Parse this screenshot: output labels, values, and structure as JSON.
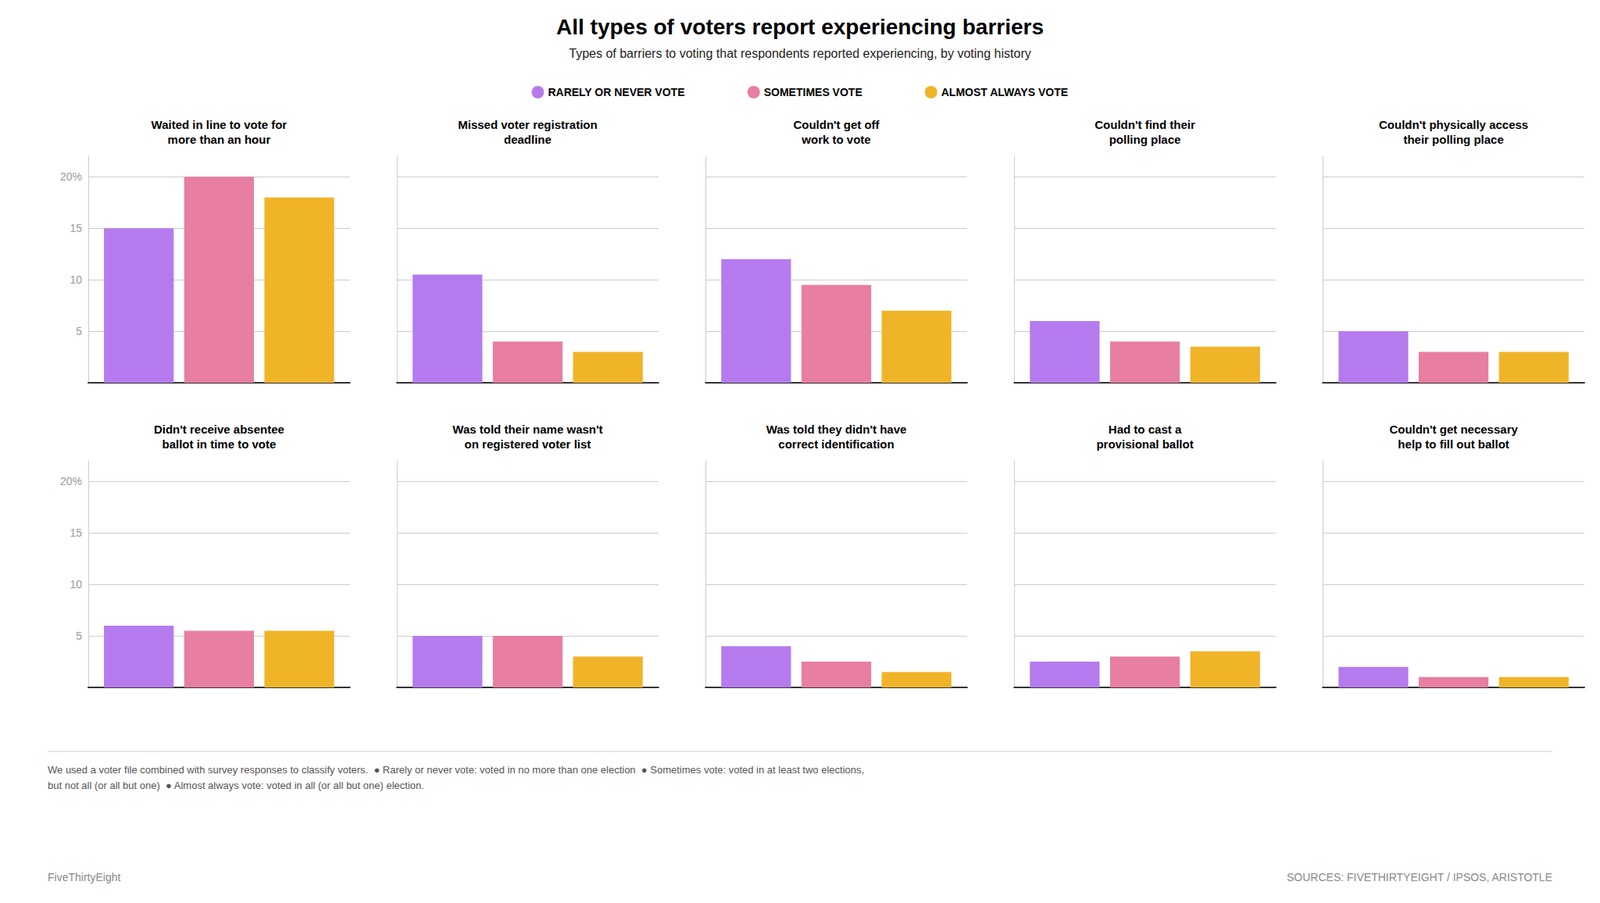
{
  "title": "All types of voters report experiencing barriers",
  "subtitle": "Types of barriers to voting that respondents reported experiencing, by voting history",
  "legend": "top",
  "annotations": [
    "We used a voter file combined with survey responses to classify voters.  ● Rarely or never vote: voted in no more than one election  ● Sometimes vote: voted in at least two elections,\nbut not all (or all but one)  ● Almost always vote: voted in all (or all but one) election.",
    "FiveThirtyEight",
    "SOURCES: FIVETHIRTYEIGHT / IPSOS, ARISTOTLE"
  ],
  "chart_data": [
    {
      "type": "bar",
      "title": "Waited in line to vote for\nmore than an hour",
      "categories": [
        null
      ],
      "series": [
        {
          "name": "RARELY OR NEVER VOTE",
          "color": "#b57bee",
          "values": [
            15
          ]
        },
        {
          "name": "SOMETIMES VOTE",
          "color": "#e87ea1",
          "values": [
            20
          ]
        },
        {
          "name": "ALMOST ALWAYS VOTE",
          "color": "#f0b429",
          "values": [
            18
          ]
        }
      ],
      "ylim": [
        0,
        22
      ],
      "yticks": [
        5,
        10,
        15,
        {
          "value": 20,
          "label": "20%"
        }
      ],
      "grid": true,
      "tick_labels": "y"
    },
    {
      "type": "bar",
      "title": "Missed voter registration\ndeadline",
      "categories": [
        null
      ],
      "series": [
        {
          "name": "RARELY OR NEVER VOTE",
          "color": "#b57bee",
          "values": [
            10.5
          ]
        },
        {
          "name": "SOMETIMES VOTE",
          "color": "#e87ea1",
          "values": [
            4
          ]
        },
        {
          "name": "ALMOST ALWAYS VOTE",
          "color": "#f0b429",
          "values": [
            3
          ]
        }
      ],
      "ylim": [
        0,
        22
      ],
      "yticks": [
        5,
        10,
        15,
        {
          "value": 20,
          "label": "20%"
        }
      ],
      "grid": true,
      "tick_labels": false
    },
    {
      "type": "bar",
      "title": "Couldn't get off\nwork to vote",
      "categories": [
        null
      ],
      "series": [
        {
          "name": "RARELY OR NEVER VOTE",
          "color": "#b57bee",
          "values": [
            12
          ]
        },
        {
          "name": "SOMETIMES VOTE",
          "color": "#e87ea1",
          "values": [
            9.5
          ]
        },
        {
          "name": "ALMOST ALWAYS VOTE",
          "color": "#f0b429",
          "values": [
            7
          ]
        }
      ],
      "ylim": [
        0,
        22
      ],
      "yticks": [
        5,
        10,
        15,
        {
          "value": 20,
          "label": "20%"
        }
      ],
      "grid": true,
      "tick_labels": false
    },
    {
      "type": "bar",
      "title": "Couldn't find their\npolling place",
      "categories": [
        null
      ],
      "series": [
        {
          "name": "RARELY OR NEVER VOTE",
          "color": "#b57bee",
          "values": [
            6
          ]
        },
        {
          "name": "SOMETIMES VOTE",
          "color": "#e87ea1",
          "values": [
            4
          ]
        },
        {
          "name": "ALMOST ALWAYS VOTE",
          "color": "#f0b429",
          "values": [
            3.5
          ]
        }
      ],
      "ylim": [
        0,
        22
      ],
      "yticks": [
        5,
        10,
        15,
        {
          "value": 20,
          "label": "20%"
        }
      ],
      "grid": true,
      "tick_labels": false
    },
    {
      "type": "bar",
      "title": "Couldn't physically access\ntheir polling place",
      "categories": [
        null
      ],
      "series": [
        {
          "name": "RARELY OR NEVER VOTE",
          "color": "#b57bee",
          "values": [
            5
          ]
        },
        {
          "name": "SOMETIMES VOTE",
          "color": "#e87ea1",
          "values": [
            3
          ]
        },
        {
          "name": "ALMOST ALWAYS VOTE",
          "color": "#f0b429",
          "values": [
            3
          ]
        }
      ],
      "ylim": [
        0,
        22
      ],
      "yticks": [
        5,
        10,
        15,
        {
          "value": 20,
          "label": "20%"
        }
      ],
      "grid": true,
      "tick_labels": false
    },
    {
      "type": "bar",
      "title": "Didn't receive absentee\nballot in time to vote",
      "categories": [
        null
      ],
      "series": [
        {
          "name": "RARELY OR NEVER VOTE",
          "color": "#b57bee",
          "values": [
            6
          ]
        },
        {
          "name": "SOMETIMES VOTE",
          "color": "#e87ea1",
          "values": [
            5.5
          ]
        },
        {
          "name": "ALMOST ALWAYS VOTE",
          "color": "#f0b429",
          "values": [
            5.5
          ]
        }
      ],
      "ylim": [
        0,
        22
      ],
      "yticks": [
        5,
        10,
        15,
        {
          "value": 20,
          "label": "20%"
        }
      ],
      "grid": true,
      "tick_labels": "y"
    },
    {
      "type": "bar",
      "title": "Was told their name wasn't\non registered voter list",
      "categories": [
        null
      ],
      "series": [
        {
          "name": "RARELY OR NEVER VOTE",
          "color": "#b57bee",
          "values": [
            5
          ]
        },
        {
          "name": "SOMETIMES VOTE",
          "color": "#e87ea1",
          "values": [
            5
          ]
        },
        {
          "name": "ALMOST ALWAYS VOTE",
          "color": "#f0b429",
          "values": [
            3
          ]
        }
      ],
      "ylim": [
        0,
        22
      ],
      "yticks": [
        5,
        10,
        15,
        {
          "value": 20,
          "label": "20%"
        }
      ],
      "grid": true,
      "tick_labels": false
    },
    {
      "type": "bar",
      "title": "Was told they didn't have\ncorrect identification",
      "categories": [
        null
      ],
      "series": [
        {
          "name": "RARELY OR NEVER VOTE",
          "color": "#b57bee",
          "values": [
            4
          ]
        },
        {
          "name": "SOMETIMES VOTE",
          "color": "#e87ea1",
          "values": [
            2.5
          ]
        },
        {
          "name": "ALMOST ALWAYS VOTE",
          "color": "#f0b429",
          "values": [
            1.5
          ]
        }
      ],
      "ylim": [
        0,
        22
      ],
      "yticks": [
        5,
        10,
        15,
        {
          "value": 20,
          "label": "20%"
        }
      ],
      "grid": true,
      "tick_labels": false
    },
    {
      "type": "bar",
      "title": "Had to cast a\nprovisional ballot",
      "categories": [
        null
      ],
      "series": [
        {
          "name": "RARELY OR NEVER VOTE",
          "color": "#b57bee",
          "values": [
            2.5
          ]
        },
        {
          "name": "SOMETIMES VOTE",
          "color": "#e87ea1",
          "values": [
            3
          ]
        },
        {
          "name": "ALMOST ALWAYS VOTE",
          "color": "#f0b429",
          "values": [
            3.5
          ]
        }
      ],
      "ylim": [
        0,
        22
      ],
      "yticks": [
        5,
        10,
        15,
        {
          "value": 20,
          "label": "20%"
        }
      ],
      "grid": true,
      "tick_labels": false
    },
    {
      "type": "bar",
      "title": "Couldn't get necessary\nhelp to fill out ballot",
      "categories": [
        null
      ],
      "series": [
        {
          "name": "RARELY OR NEVER VOTE",
          "color": "#b57bee",
          "values": [
            2
          ]
        },
        {
          "name": "SOMETIMES VOTE",
          "color": "#e87ea1",
          "values": [
            1
          ]
        },
        {
          "name": "ALMOST ALWAYS VOTE",
          "color": "#f0b429",
          "values": [
            1
          ]
        }
      ],
      "ylim": [
        0,
        22
      ],
      "yticks": [
        5,
        10,
        15,
        {
          "value": 20,
          "label": "20%"
        }
      ],
      "grid": true,
      "tick_labels": false
    }
  ]
}
